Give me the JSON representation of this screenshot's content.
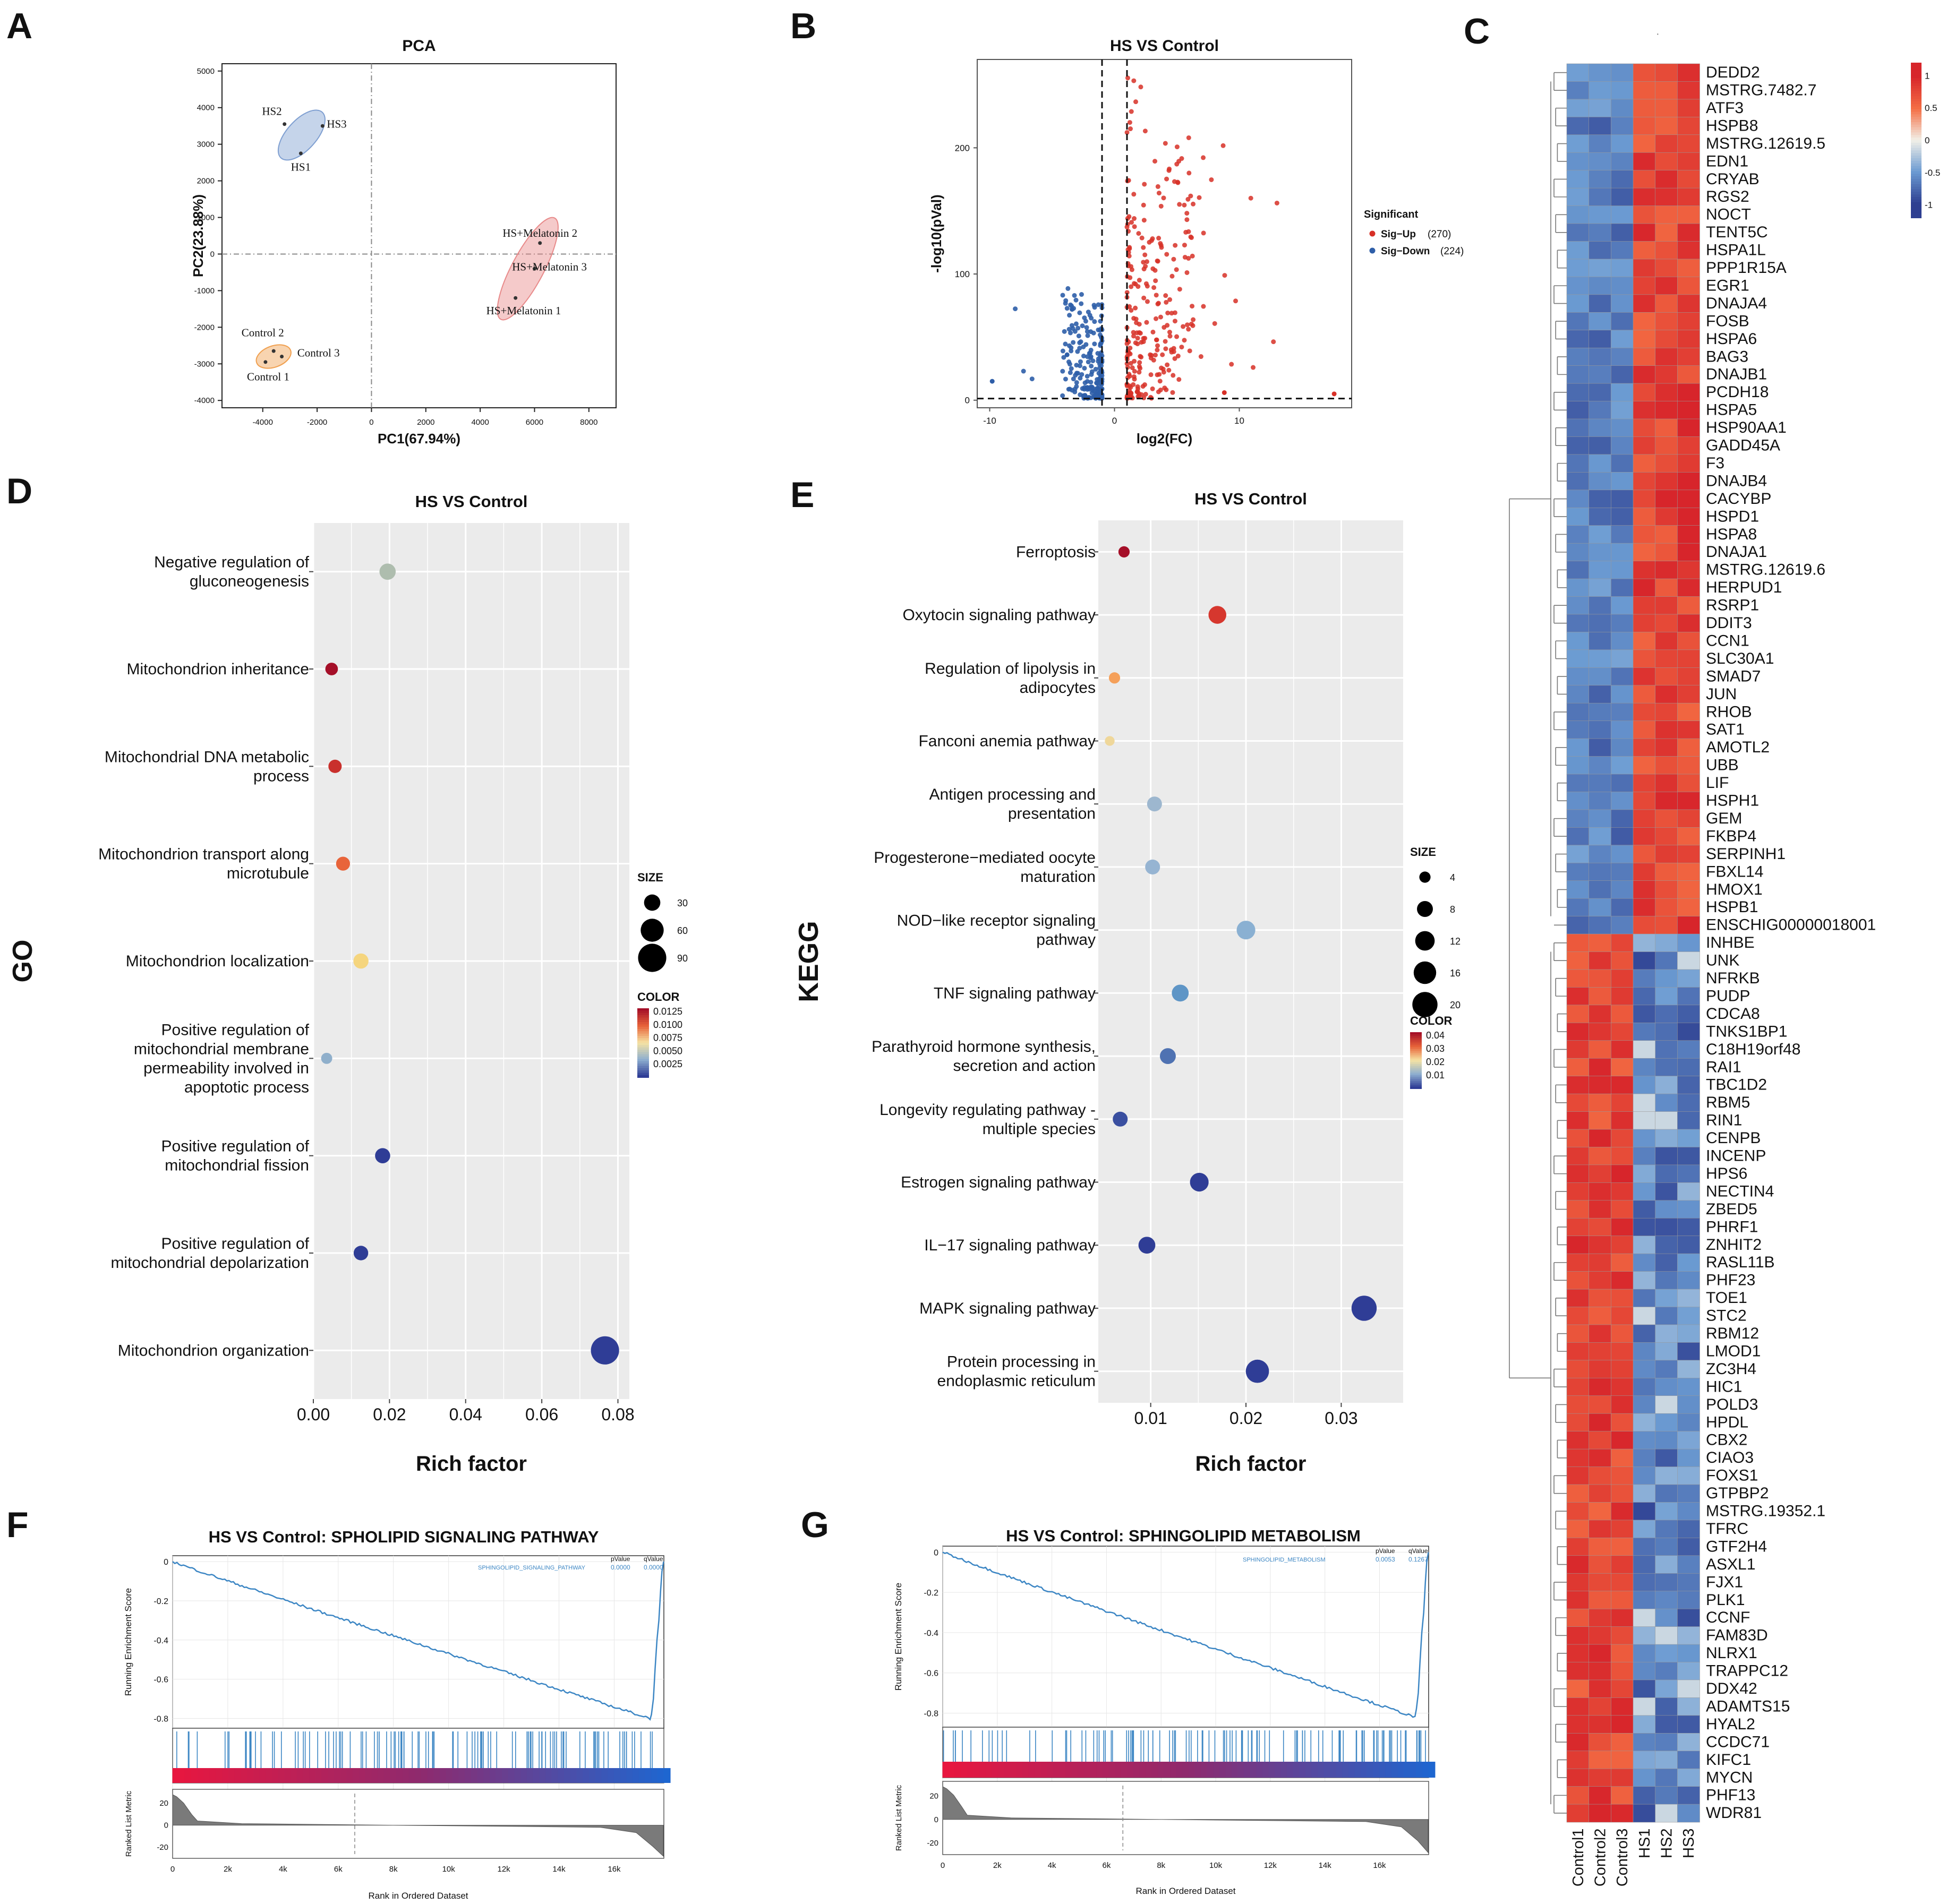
{
  "colors": {
    "red": "#D73027",
    "blue": "#2E5EA8",
    "lightblue": "#9BB5D6",
    "panel_bg": "#EBEBEB",
    "heat_high": "#C1121F",
    "heat_low": "#2B3A8C"
  },
  "panels": {
    "A": {
      "letter": "A",
      "chart_data": {
        "type": "scatter",
        "title": "PCA",
        "xlabel": "PC1(67.94%)",
        "ylabel": "PC2(23.88%)",
        "xlim": [
          -5500,
          9000
        ],
        "ylim": [
          -4200,
          5200
        ],
        "xticks": [
          -4000,
          -2000,
          0,
          2000,
          4000,
          6000,
          8000
        ],
        "yticks": [
          -4000,
          -3000,
          -2000,
          -1000,
          0,
          1000,
          2000,
          3000,
          4000,
          5000
        ],
        "groups": [
          {
            "name": "HS",
            "color": "#7F9FD1",
            "points": [
              {
                "label": "HS2",
                "x": -3200,
                "y": 3550
              },
              {
                "label": "HS3",
                "x": -1800,
                "y": 3500
              },
              {
                "label": "HS1",
                "x": -2600,
                "y": 2750
              }
            ]
          },
          {
            "name": "HS+Melatonin",
            "color": "#E88A8A",
            "points": [
              {
                "label": "HS+Melatonin 2",
                "x": 6200,
                "y": 300
              },
              {
                "label": "HS+Melatonin 3",
                "x": 6000,
                "y": -400
              },
              {
                "label": "HS+Melatonin 1",
                "x": 5300,
                "y": -1200
              }
            ]
          },
          {
            "name": "Control",
            "color": "#F0A050",
            "points": [
              {
                "label": "Control 2",
                "x": -3600,
                "y": -2650
              },
              {
                "label": "Control 3",
                "x": -3300,
                "y": -2800
              },
              {
                "label": "Control 1",
                "x": -3900,
                "y": -2950
              }
            ]
          }
        ]
      }
    },
    "B": {
      "letter": "B",
      "chart_data": {
        "type": "scatter",
        "title": "HS VS Control",
        "xlabel": "log2(FC)",
        "ylabel": "-log10(pVal)",
        "xlim": [
          -11,
          19
        ],
        "ylim": [
          -6,
          270
        ],
        "xticks": [
          -10,
          0,
          10
        ],
        "yticks": [
          0,
          100,
          200
        ],
        "thresholds": {
          "x": [
            -1,
            1
          ],
          "y": 1.3
        },
        "legend": {
          "title": "Significant",
          "up_label": "Sig−Up",
          "up_count": "(270)",
          "down_label": "Sig−Down",
          "down_count": "(224)"
        },
        "sig_up": 270,
        "sig_down": 224
      }
    },
    "C": {
      "letter": "C",
      "chart_data": {
        "type": "heatmap",
        "columns": [
          "Control1",
          "Control2",
          "Control3",
          "HS1",
          "HS2",
          "HS3"
        ],
        "genes": [
          "DEDD2",
          "MSTRG.7482.7",
          "ATF3",
          "HSPB8",
          "MSTRG.12619.5",
          "EDN1",
          "CRYAB",
          "RGS2",
          "NOCT",
          "TENT5C",
          "HSPA1L",
          "PPP1R15A",
          "EGR1",
          "DNAJA4",
          "FOSB",
          "HSPA6",
          "BAG3",
          "DNAJB1",
          "PCDH18",
          "HSPA5",
          "HSP90AA1",
          "GADD45A",
          "F3",
          "DNAJB4",
          "CACYBP",
          "HSPD1",
          "HSPA8",
          "DNAJA1",
          "MSTRG.12619.6",
          "HERPUD1",
          "RSRP1",
          "DDIT3",
          "CCN1",
          "SLC30A1",
          "SMAD7",
          "JUN",
          "RHOB",
          "SAT1",
          "AMOTL2",
          "UBB",
          "LIF",
          "HSPH1",
          "GEM",
          "FKBP4",
          "SERPINH1",
          "FBXL14",
          "HMOX1",
          "HSPB1",
          "ENSCHIG00000018001",
          "INHBE",
          "UNK",
          "NFRKB",
          "PUDP",
          "CDCA8",
          "TNKS1BP1",
          "C18H19orf48",
          "RAI1",
          "TBC1D2",
          "RBM5",
          "RIN1",
          "CENPB",
          "INCENP",
          "HPS6",
          "NECTIN4",
          "ZBED5",
          "PHRF1",
          "ZNHIT2",
          "RASL11B",
          "PHF23",
          "TOE1",
          "STC2",
          "RBM12",
          "LMOD1",
          "ZC3H4",
          "HIC1",
          "POLD3",
          "HPDL",
          "CBX2",
          "CIAO3",
          "FOXS1",
          "GTPBP2",
          "MSTRG.19352.1",
          "TFRC",
          "GTF2H4",
          "ASXL1",
          "FJX1",
          "PLK1",
          "CCNF",
          "FAM83D",
          "NLRX1",
          "TRAPPC12",
          "DDX42",
          "ADAMTS15",
          "HYAL2",
          "CCDC71",
          "KIFC1",
          "MYCN",
          "PHF13",
          "WDR81"
        ],
        "up_in_hs_count": 49,
        "colorbar_ticks": [
          "1",
          "0.5",
          "0",
          "-0.5",
          "-1"
        ],
        "dot_mark": "·"
      }
    },
    "D": {
      "letter": "D",
      "chart_data": {
        "type": "scatter",
        "title": "HS VS Control",
        "xlabel": "Rich factor",
        "ylabel": "GO",
        "xlim": [
          0,
          0.083
        ],
        "xticks": [
          "0.00",
          "0.02",
          "0.04",
          "0.06",
          "0.08"
        ],
        "xtick_values": [
          0,
          0.02,
          0.04,
          0.06,
          0.08
        ],
        "terms": [
          {
            "lines": [
              "Negative regulation of",
              "gluconeogenesis"
            ],
            "x": 0.0195,
            "size": 30,
            "color": "#AEBDAE"
          },
          {
            "lines": [
              "Mitochondrion inheritance"
            ],
            "x": 0.0048,
            "size": 18,
            "color": "#A50F28"
          },
          {
            "lines": [
              "Mitochondrial DNA metabolic",
              "process"
            ],
            "x": 0.0057,
            "size": 20,
            "color": "#C9302C"
          },
          {
            "lines": [
              "Mitochondrion transport along",
              "microtubule"
            ],
            "x": 0.0078,
            "size": 22,
            "color": "#E8643A"
          },
          {
            "lines": [
              "Mitochondrion localization"
            ],
            "x": 0.0125,
            "size": 26,
            "color": "#F5D57E"
          },
          {
            "lines": [
              "Positive regulation of",
              "mitochondrial membrane",
              "permeability involved in",
              "apoptotic process"
            ],
            "x": 0.0035,
            "size": 14,
            "color": "#8FAFCB"
          },
          {
            "lines": [
              "Positive regulation of",
              "mitochondrial fission"
            ],
            "x": 0.0182,
            "size": 26,
            "color": "#2F3D96"
          },
          {
            "lines": [
              "Positive regulation of",
              "mitochondrial depolarization"
            ],
            "x": 0.0125,
            "size": 24,
            "color": "#2F3D96"
          },
          {
            "lines": [
              "Mitochondrion organization"
            ],
            "x": 0.0766,
            "size": 90,
            "color": "#2F3D96"
          }
        ],
        "legend": {
          "size_title": "SIZE",
          "sizes": [
            "30",
            "60",
            "90"
          ],
          "color_title": "COLOR",
          "colors": [
            "0.0125",
            "0.0100",
            "0.0075",
            "0.0050",
            "0.0025"
          ]
        }
      }
    },
    "E": {
      "letter": "E",
      "chart_data": {
        "type": "scatter",
        "title": "HS VS Control",
        "xlabel": "Rich factor",
        "ylabel": "KEGG",
        "xlim": [
          0.0045,
          0.0365
        ],
        "xticks": [
          "0.01",
          "0.02",
          "0.03"
        ],
        "xtick_values": [
          0.01,
          0.02,
          0.03
        ],
        "terms": [
          {
            "lines": [
              "Ferroptosis"
            ],
            "x": 0.0072,
            "size": 4,
            "color": "#A50F28"
          },
          {
            "lines": [
              "Oxytocin signaling pathway"
            ],
            "x": 0.017,
            "size": 10,
            "color": "#D6372E"
          },
          {
            "lines": [
              "Regulation of lipolysis in",
              "adipocytes"
            ],
            "x": 0.0062,
            "size": 4,
            "color": "#F5A05A"
          },
          {
            "lines": [
              "Fanconi anemia pathway"
            ],
            "x": 0.0057,
            "size": 3,
            "color": "#EFD79A"
          },
          {
            "lines": [
              "Antigen processing and",
              "presentation"
            ],
            "x": 0.0104,
            "size": 7,
            "color": "#9DB7CF"
          },
          {
            "lines": [
              "Progesterone−mediated oocyte",
              "maturation"
            ],
            "x": 0.0102,
            "size": 7,
            "color": "#96B4D2"
          },
          {
            "lines": [
              "NOD−like receptor signaling",
              "pathway"
            ],
            "x": 0.02,
            "size": 11,
            "color": "#8AB0D2"
          },
          {
            "lines": [
              "TNF signaling pathway"
            ],
            "x": 0.0131,
            "size": 9,
            "color": "#5E95C6"
          },
          {
            "lines": [
              "Parathyroid hormone synthesis,",
              "secretion and action"
            ],
            "x": 0.0118,
            "size": 8,
            "color": "#4F72B2"
          },
          {
            "lines": [
              "Longevity regulating pathway -",
              "multiple species"
            ],
            "x": 0.0068,
            "size": 7,
            "color": "#3A4FA0"
          },
          {
            "lines": [
              "Estrogen signaling pathway"
            ],
            "x": 0.0151,
            "size": 11,
            "color": "#2F3D96"
          },
          {
            "lines": [
              "IL−17 signaling pathway"
            ],
            "x": 0.0096,
            "size": 9,
            "color": "#2F3D96"
          },
          {
            "lines": [
              "MAPK signaling pathway"
            ],
            "x": 0.0324,
            "size": 20,
            "color": "#2F3D96"
          },
          {
            "lines": [
              "Protein processing in",
              "endoplasmic reticulum"
            ],
            "x": 0.0212,
            "size": 17,
            "color": "#2F3D96"
          }
        ],
        "legend": {
          "size_title": "SIZE",
          "sizes": [
            "4",
            "8",
            "12",
            "16",
            "20"
          ],
          "color_title": "COLOR",
          "colors": [
            "0.04",
            "0.03",
            "0.02",
            "0.01"
          ]
        }
      }
    },
    "F": {
      "letter": "F",
      "chart_data": {
        "type": "line",
        "title": "HS VS Control:  SPHOLIPID SIGNALING PATHWAY",
        "ylabel": "Running Enrichment Score",
        "ylabel2": "Ranked List Metric",
        "xlabel": "Rank in Ordered Dataset",
        "xlim": [
          0,
          17800
        ],
        "ylim": [
          -0.85,
          0.03
        ],
        "xticks": [
          "0",
          "2k",
          "4k",
          "6k",
          "8k",
          "10k",
          "12k",
          "14k",
          "16k"
        ],
        "xtick_values": [
          0,
          2000,
          4000,
          6000,
          8000,
          10000,
          12000,
          14000,
          16000
        ],
        "yticks": [
          "0",
          "-0.2",
          "-0.4",
          "-0.6",
          "-0.8"
        ],
        "ytick_values": [
          0,
          -0.2,
          -0.4,
          -0.6,
          -0.8
        ],
        "metric_ticks": [
          "20",
          "0",
          "-20"
        ],
        "min_es": -0.8,
        "min_rank": 17300,
        "zero_cross": 6600,
        "legend": {
          "name": "SPHINGOLIPID_SIGNALING_PATHWAY",
          "p_head": "pValue",
          "q_head": "qValue",
          "p": "0.0000",
          "q": "0.0000"
        }
      }
    },
    "G": {
      "letter": "G",
      "chart_data": {
        "type": "line",
        "title": "HS VS Control:  SPHINGOLIPID METABOLISM",
        "ylabel": "Running Enrichment Score",
        "ylabel2": "Ranked List Metric",
        "xlabel": "Rank in Ordered Dataset",
        "xlim": [
          0,
          17800
        ],
        "ylim": [
          -0.87,
          0.03
        ],
        "xticks": [
          "0",
          "2k",
          "4k",
          "6k",
          "8k",
          "10k",
          "12k",
          "14k",
          "16k"
        ],
        "xtick_values": [
          0,
          2000,
          4000,
          6000,
          8000,
          10000,
          12000,
          14000,
          16000
        ],
        "yticks": [
          "0",
          "-0.2",
          "-0.4",
          "-0.6",
          "-0.8"
        ],
        "ytick_values": [
          0,
          -0.2,
          -0.4,
          -0.6,
          -0.8
        ],
        "metric_ticks": [
          "20",
          "0",
          "-20"
        ],
        "min_es": -0.82,
        "min_rank": 17300,
        "zero_cross": 6600,
        "legend": {
          "name": "SPHINGOLIPID_METABOLISM",
          "p_head": "pValue",
          "q_head": "qValue",
          "p": "0.0053",
          "q": "0.1267"
        }
      }
    }
  }
}
